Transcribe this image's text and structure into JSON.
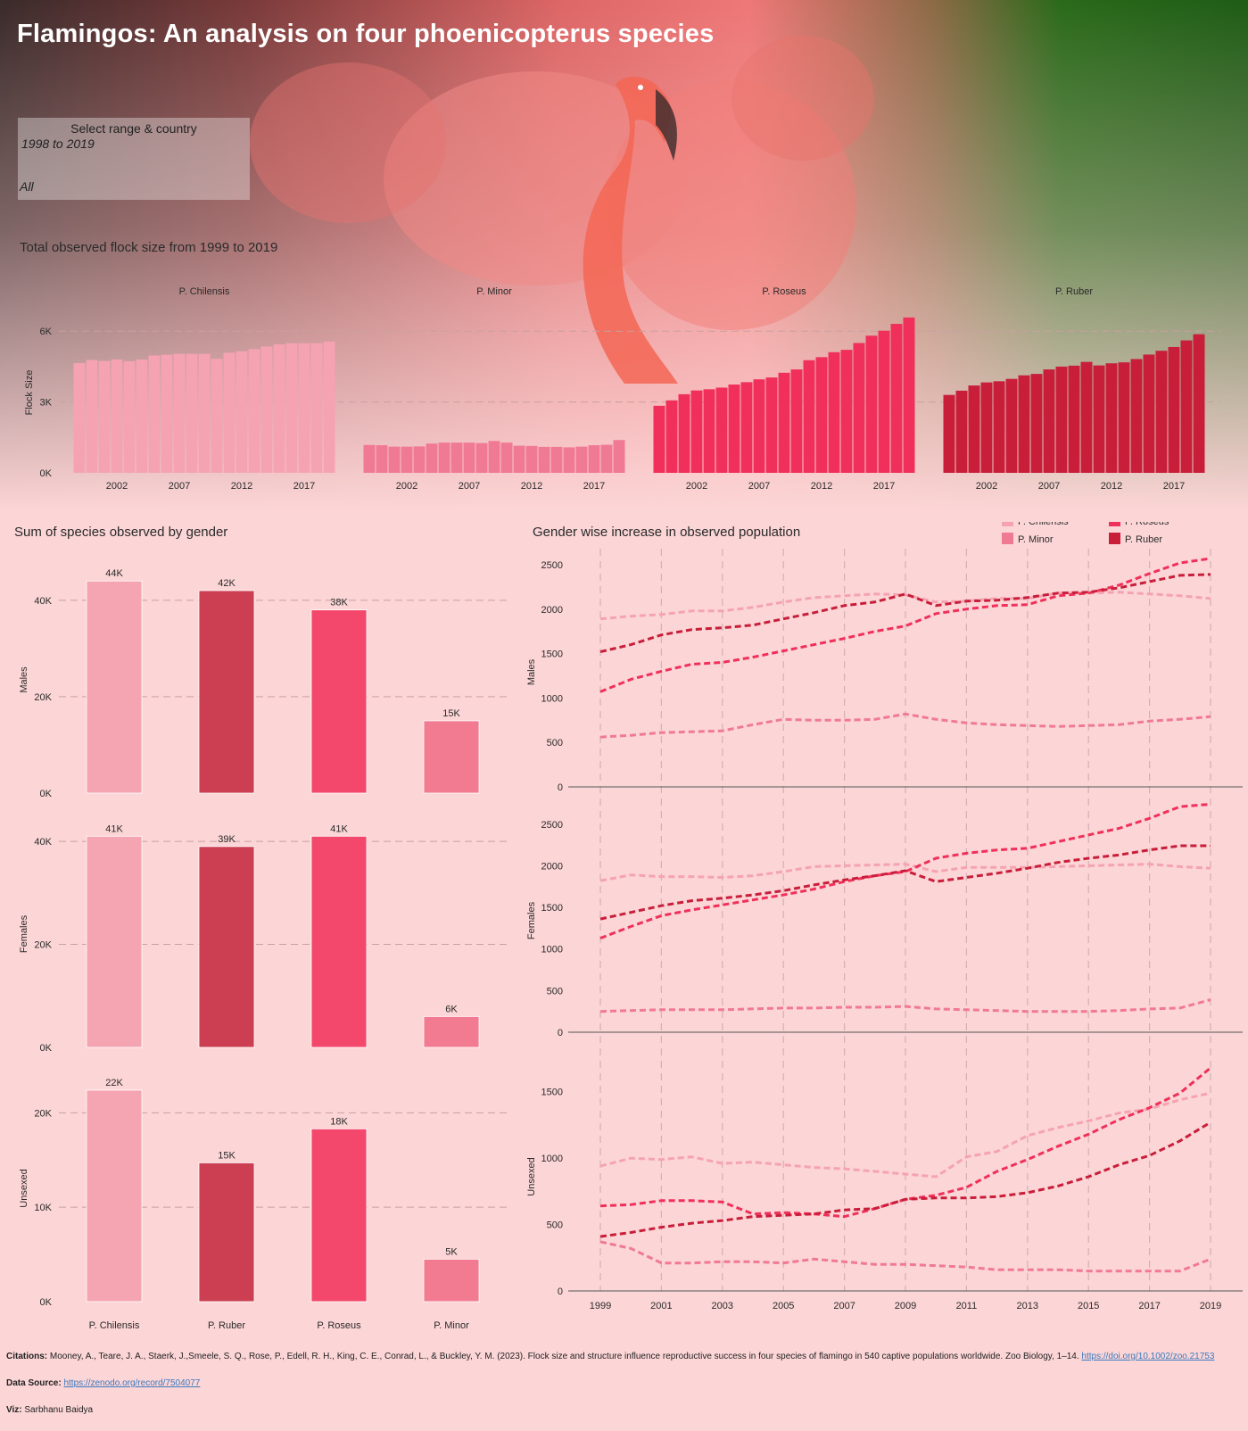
{
  "title": "Flamingos: An analysis on four phoenicopterus species",
  "filter": {
    "heading": "Select range & country",
    "range": "1998 to 2019",
    "country": "All"
  },
  "colors": {
    "P. Chilensis": "#f5a3b2",
    "P. Minor": "#f07a93",
    "P. Roseus": "#f0305a",
    "P. Ruber": "#c81e3a",
    "bar_ruber_gender": "#cc3f52",
    "bar_roseus_gender": "#f3486b",
    "bar_minor_gender": "#f27b91",
    "bar_chilensis_gender": "#f5a4b2"
  },
  "chart_data": [
    {
      "type": "bar",
      "title": "Total observed flock size from 1999 to 2019",
      "ylabel": "Flock Size",
      "ylim": [
        0,
        6500
      ],
      "yticks": [
        "0K",
        "3K",
        "6K"
      ],
      "xticks": [
        "2002",
        "2007",
        "2012",
        "2017"
      ],
      "categories": [
        1999,
        2000,
        2001,
        2002,
        2003,
        2004,
        2005,
        2006,
        2007,
        2008,
        2009,
        2010,
        2011,
        2012,
        2013,
        2014,
        2015,
        2016,
        2017,
        2018,
        2019
      ],
      "facets": [
        {
          "name": "P. Chilensis",
          "values": [
            4650,
            4780,
            4740,
            4800,
            4730,
            4800,
            4970,
            5000,
            5040,
            5040,
            5040,
            4830,
            5090,
            5150,
            5240,
            5350,
            5440,
            5490,
            5490,
            5490,
            5560
          ]
        },
        {
          "name": "P. Minor",
          "values": [
            1180,
            1170,
            1110,
            1110,
            1120,
            1240,
            1280,
            1280,
            1280,
            1260,
            1350,
            1280,
            1150,
            1140,
            1100,
            1100,
            1080,
            1110,
            1170,
            1190,
            1390
          ]
        },
        {
          "name": "P. Roseus",
          "values": [
            2840,
            3070,
            3330,
            3490,
            3540,
            3610,
            3740,
            3840,
            3960,
            4040,
            4240,
            4380,
            4770,
            4900,
            5110,
            5210,
            5500,
            5810,
            6020,
            6310,
            6580
          ]
        },
        {
          "name": "P. Ruber",
          "values": [
            3300,
            3480,
            3700,
            3830,
            3880,
            3980,
            4130,
            4190,
            4380,
            4500,
            4540,
            4700,
            4550,
            4640,
            4680,
            4820,
            5010,
            5170,
            5330,
            5610,
            5870
          ]
        }
      ]
    },
    {
      "type": "bar",
      "title": "Sum of species observed by gender",
      "categories": [
        "P. Chilensis",
        "P. Ruber",
        "P. Roseus",
        "P. Minor"
      ],
      "panels": [
        {
          "name": "Males",
          "ylim": [
            0,
            47000
          ],
          "yticks": [
            "0K",
            "20K",
            "40K"
          ],
          "values": [
            44000,
            42000,
            38000,
            15000
          ],
          "labels": [
            "44K",
            "42K",
            "38K",
            "15K"
          ]
        },
        {
          "name": "Females",
          "ylim": [
            0,
            44000
          ],
          "yticks": [
            "0K",
            "20K",
            "40K"
          ],
          "values": [
            41000,
            39000,
            41000,
            6000
          ],
          "labels": [
            "41K",
            "39K",
            "41K",
            "6K"
          ]
        },
        {
          "name": "Unsexed",
          "ylim": [
            0,
            24000
          ],
          "yticks": [
            "0K",
            "10K",
            "20K"
          ],
          "values": [
            22400,
            14700,
            18300,
            4500
          ],
          "labels": [
            "22K",
            "15K",
            "18K",
            "5K"
          ]
        }
      ]
    },
    {
      "type": "line",
      "title": "Gender wise increase in observed population",
      "x": [
        1999,
        2000,
        2001,
        2002,
        2003,
        2004,
        2005,
        2006,
        2007,
        2008,
        2009,
        2010,
        2011,
        2012,
        2013,
        2014,
        2015,
        2016,
        2017,
        2018,
        2019
      ],
      "xticks": [
        "1999",
        "2001",
        "2003",
        "2005",
        "2007",
        "2009",
        "2011",
        "2013",
        "2015",
        "2017",
        "2019"
      ],
      "legend": [
        "P. Chilensis",
        "P. Roseus",
        "P. Minor",
        "P. Ruber"
      ],
      "panels": [
        {
          "name": "Males",
          "ylim": [
            0,
            2580
          ],
          "yticks": [
            "0",
            "500",
            "1000",
            "1500",
            "2000",
            "2500"
          ],
          "series": [
            {
              "name": "P. Chilensis",
              "values": [
                1890,
                1920,
                1940,
                1980,
                1980,
                2020,
                2080,
                2130,
                2150,
                2170,
                2160,
                2080,
                2090,
                2120,
                2120,
                2180,
                2180,
                2190,
                2170,
                2150,
                2120
              ]
            },
            {
              "name": "P. Minor",
              "values": [
                560,
                580,
                610,
                620,
                630,
                700,
                760,
                750,
                750,
                760,
                820,
                760,
                720,
                700,
                690,
                680,
                690,
                700,
                740,
                760,
                790
              ]
            },
            {
              "name": "P. Roseus",
              "values": [
                1070,
                1210,
                1300,
                1380,
                1400,
                1460,
                1530,
                1600,
                1670,
                1750,
                1810,
                1950,
                2000,
                2040,
                2050,
                2150,
                2180,
                2270,
                2400,
                2520,
                2570
              ]
            },
            {
              "name": "P. Ruber",
              "values": [
                1520,
                1600,
                1710,
                1770,
                1790,
                1820,
                1890,
                1960,
                2040,
                2080,
                2170,
                2040,
                2090,
                2100,
                2130,
                2180,
                2190,
                2240,
                2310,
                2380,
                2390
              ]
            }
          ]
        },
        {
          "name": "Females",
          "ylim": [
            0,
            2680
          ],
          "yticks": [
            "0",
            "500",
            "1000",
            "1500",
            "2000",
            "2500"
          ],
          "series": [
            {
              "name": "P. Chilensis",
              "values": [
                1820,
                1890,
                1870,
                1870,
                1860,
                1880,
                1930,
                1990,
                2000,
                2010,
                2020,
                1930,
                1980,
                1980,
                1980,
                1990,
                2000,
                2010,
                2020,
                1990,
                1970
              ]
            },
            {
              "name": "P. Minor",
              "values": [
                250,
                260,
                270,
                270,
                270,
                280,
                290,
                290,
                300,
                300,
                310,
                280,
                270,
                260,
                250,
                250,
                250,
                260,
                280,
                290,
                390
              ]
            },
            {
              "name": "P. Roseus",
              "values": [
                1130,
                1270,
                1400,
                1470,
                1530,
                1590,
                1650,
                1720,
                1810,
                1880,
                1930,
                2090,
                2150,
                2190,
                2210,
                2290,
                2370,
                2450,
                2570,
                2710,
                2740
              ]
            },
            {
              "name": "P. Ruber",
              "values": [
                1360,
                1440,
                1520,
                1580,
                1610,
                1650,
                1700,
                1770,
                1830,
                1880,
                1940,
                1810,
                1860,
                1910,
                1970,
                2040,
                2090,
                2130,
                2190,
                2240,
                2240
              ]
            }
          ]
        },
        {
          "name": "Unsexed",
          "ylim": [
            0,
            1720
          ],
          "yticks": [
            "0",
            "500",
            "1000",
            "1500"
          ],
          "series": [
            {
              "name": "P. Chilensis",
              "values": [
                940,
                1000,
                990,
                1010,
                960,
                970,
                950,
                930,
                920,
                900,
                880,
                860,
                1010,
                1050,
                1170,
                1230,
                1280,
                1340,
                1370,
                1440,
                1490
              ]
            },
            {
              "name": "P. Minor",
              "values": [
                370,
                320,
                210,
                210,
                220,
                220,
                210,
                240,
                220,
                200,
                200,
                190,
                180,
                160,
                160,
                160,
                150,
                150,
                150,
                150,
                240
              ]
            },
            {
              "name": "P. Roseus",
              "values": [
                640,
                650,
                680,
                680,
                670,
                580,
                590,
                580,
                560,
                620,
                690,
                720,
                780,
                900,
                990,
                1090,
                1180,
                1290,
                1380,
                1490,
                1680
              ]
            },
            {
              "name": "P. Ruber",
              "values": [
                410,
                440,
                480,
                510,
                530,
                560,
                570,
                580,
                610,
                620,
                690,
                700,
                700,
                710,
                740,
                790,
                860,
                950,
                1020,
                1130,
                1270
              ]
            }
          ]
        }
      ]
    }
  ],
  "citations": {
    "citation_label": "Citations:",
    "citation_text": "Mooney, A., Teare, J. A., Staerk, J.,Smeele, S. Q., Rose, P., Edell, R. H., King, C. E., Conrad, L., & Buckley, Y. M. (2023). Flock size and structure influence reproductive success in four species of flamingo in 540 captive populations worldwide. Zoo Biology, 1–14.",
    "citation_link": "https://doi.org/10.1002/zoo.21753",
    "source_label": "Data Source:",
    "source_link": "https://zenodo.org/record/7504077",
    "viz_label": "Viz:",
    "viz_name": "Sarbhanu Baidya"
  }
}
